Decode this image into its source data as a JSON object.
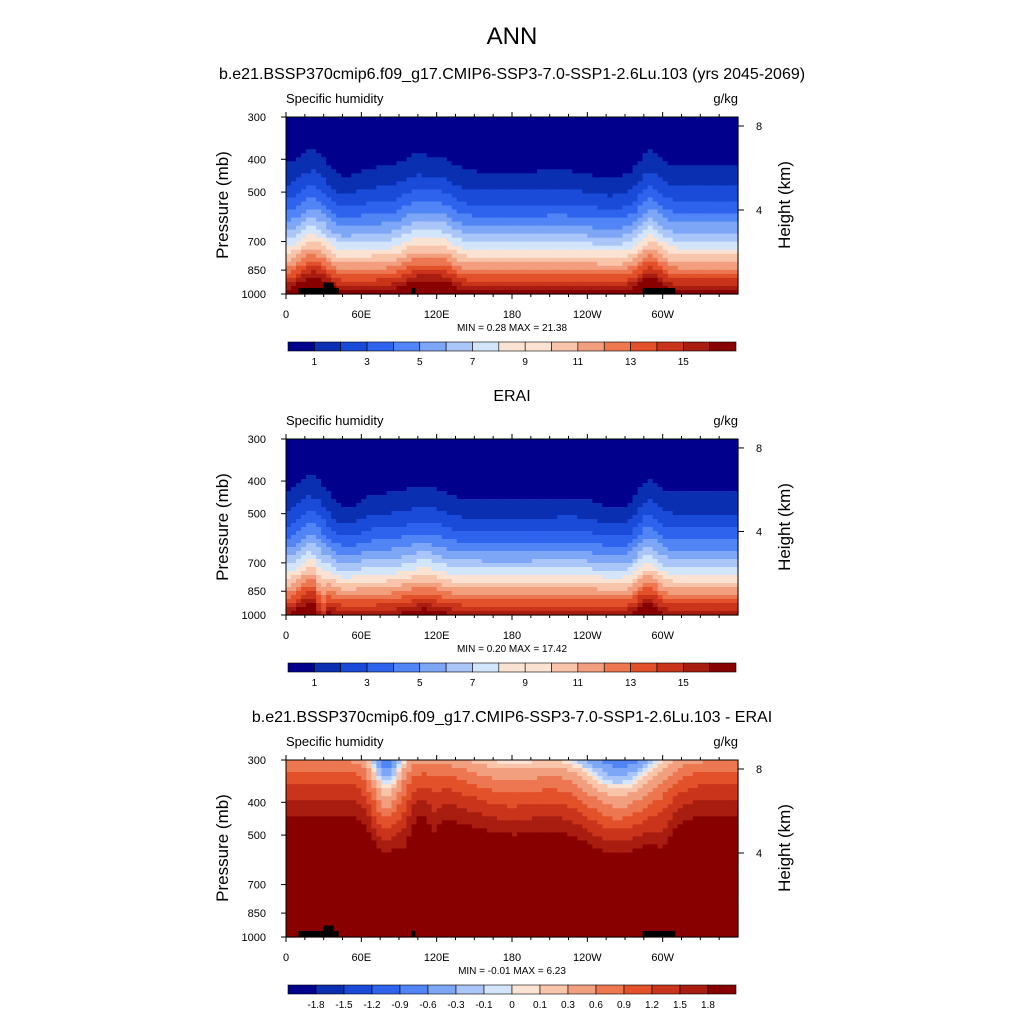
{
  "figure_title": "ANN",
  "chart_data": [
    {
      "type": "contour",
      "title": "b.e21.BSSP370cmip6.f09_g17.CMIP6-SSP3-7.0-SSP1-2.6Lu.103 (yrs 2045-2069)",
      "left_string": "Specific humidity",
      "right_string": "g/kg",
      "ylabel": "Pressure (mb)",
      "y2label": "Height (km)",
      "x_ticks": [
        "0",
        "60E",
        "120E",
        "180",
        "120W",
        "60W"
      ],
      "x_tick_lon": [
        0,
        60,
        120,
        180,
        240,
        300
      ],
      "xlim": [
        0,
        360
      ],
      "y_ticks": [
        300,
        400,
        500,
        700,
        850,
        1000
      ],
      "ylim": [
        1000,
        300
      ],
      "y2_ticks": [
        8,
        4
      ],
      "min_max": "MIN =   0.28  MAX =  21.38",
      "colorbar_labels": [
        "1",
        "3",
        "5",
        "7",
        "9",
        "11",
        "13",
        "15"
      ],
      "color_levels": [
        0,
        1,
        2,
        3,
        4,
        5,
        6,
        7,
        8,
        9,
        10,
        11,
        12,
        13,
        14,
        15,
        16
      ],
      "topo_blocks": [
        [
          10,
          30,
          960
        ],
        [
          30,
          38,
          925
        ],
        [
          38,
          42,
          960
        ],
        [
          100,
          103,
          960
        ],
        [
          284,
          310,
          960
        ]
      ],
      "regime": "model"
    },
    {
      "type": "contour",
      "title": "ERAI",
      "left_string": "Specific humidity",
      "right_string": "g/kg",
      "ylabel": "Pressure (mb)",
      "y2label": "Height (km)",
      "x_ticks": [
        "0",
        "60E",
        "120E",
        "180",
        "120W",
        "60W"
      ],
      "x_tick_lon": [
        0,
        60,
        120,
        180,
        240,
        300
      ],
      "xlim": [
        0,
        360
      ],
      "y_ticks": [
        300,
        400,
        500,
        700,
        850,
        1000
      ],
      "ylim": [
        1000,
        300
      ],
      "y2_ticks": [
        8,
        4
      ],
      "min_max": "MIN =   0.20  MAX =  17.42",
      "colorbar_labels": [
        "1",
        "3",
        "5",
        "7",
        "9",
        "11",
        "13",
        "15"
      ],
      "color_levels": [
        0,
        1,
        2,
        3,
        4,
        5,
        6,
        7,
        8,
        9,
        10,
        11,
        12,
        13,
        14,
        15,
        16
      ],
      "topo_blocks": [],
      "regime": "obs"
    },
    {
      "type": "contour",
      "title": "b.e21.BSSP370cmip6.f09_g17.CMIP6-SSP3-7.0-SSP1-2.6Lu.103 - ERAI",
      "left_string": "Specific humidity",
      "right_string": "g/kg",
      "ylabel": "Pressure (mb)",
      "y2label": "Height (km)",
      "x_ticks": [
        "0",
        "60E",
        "120E",
        "180",
        "120W",
        "60W"
      ],
      "x_tick_lon": [
        0,
        60,
        120,
        180,
        240,
        300
      ],
      "xlim": [
        0,
        360
      ],
      "y_ticks": [
        300,
        400,
        500,
        700,
        850,
        1000
      ],
      "ylim": [
        1000,
        300
      ],
      "y2_ticks": [
        8,
        4
      ],
      "min_max": "MIN =  -0.01  MAX =   6.23",
      "colorbar_labels": [
        "-1.8",
        "-1.5",
        "-1.2",
        "-0.9",
        "-0.6",
        "-0.3",
        "-0.1",
        "0",
        "0.1",
        "0.3",
        "0.6",
        "0.9",
        "1.2",
        "1.5",
        "1.8"
      ],
      "color_levels": [
        -1.8,
        -1.5,
        -1.2,
        -0.9,
        -0.6,
        -0.3,
        -0.1,
        0,
        0.1,
        0.3,
        0.6,
        0.9,
        1.2,
        1.5,
        1.8
      ],
      "topo_blocks": [
        [
          10,
          30,
          960
        ],
        [
          30,
          38,
          925
        ],
        [
          38,
          42,
          960
        ],
        [
          100,
          103,
          960
        ],
        [
          284,
          310,
          960
        ]
      ],
      "regime": "diff"
    }
  ],
  "palette": [
    "#00008c",
    "#0a2fb0",
    "#1a4ad8",
    "#2e63ee",
    "#5185f5",
    "#7ea6f7",
    "#aac6f8",
    "#d3e5fa",
    "#fbe3d4",
    "#f8c4aa",
    "#f29f7f",
    "#ec7751",
    "#e2512a",
    "#c9341a",
    "#a81d10",
    "#880000"
  ]
}
